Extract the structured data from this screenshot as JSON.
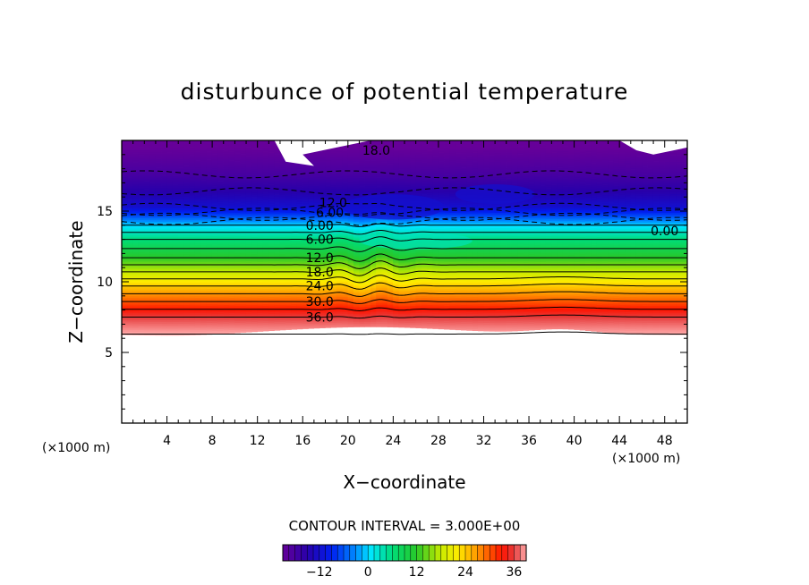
{
  "chart_data": {
    "type": "heatmap",
    "title": "disturbunce of potential temperature",
    "xlabel": "X−coordinate",
    "ylabel": "Z−coordinate",
    "x_unit_label": "(×1000 m)",
    "y_unit_label": "(×1000 m)",
    "xlim": [
      0,
      50
    ],
    "ylim": [
      0,
      20
    ],
    "x_ticks": [
      4,
      8,
      12,
      16,
      20,
      24,
      28,
      32,
      36,
      40,
      44,
      48
    ],
    "y_ticks": [
      5,
      10,
      15
    ],
    "contour_interval_text": "CONTOUR INTERVAL = 3.000E+00",
    "contour_interval": 3.0,
    "level_range": [
      -21,
      39
    ],
    "colorbar_ticks": [
      -12,
      0,
      12,
      24,
      36
    ],
    "negative_contours": "dashed",
    "contour_labels": [
      {
        "text": "18.0",
        "x": 22.5,
        "y": 19.3
      },
      {
        "text": "12.0",
        "x": 18.7,
        "y": 15.6
      },
      {
        "text": "6.00",
        "x": 18.4,
        "y": 14.9
      },
      {
        "text": "0.00",
        "x": 17.5,
        "y": 14.0
      },
      {
        "text": "6.00",
        "x": 17.5,
        "y": 13.0
      },
      {
        "text": "12.0",
        "x": 17.5,
        "y": 11.7
      },
      {
        "text": "18.0",
        "x": 17.5,
        "y": 10.7
      },
      {
        "text": "24.0",
        "x": 17.5,
        "y": 9.7
      },
      {
        "text": "30.0",
        "x": 17.5,
        "y": 8.6
      },
      {
        "text": "36.0",
        "x": 17.5,
        "y": 7.5
      },
      {
        "text": "0.00",
        "x": 48.0,
        "y": 13.6
      }
    ],
    "field_profile": [
      {
        "z": 6.3,
        "theta": 39
      },
      {
        "z": 7.5,
        "theta": 36
      },
      {
        "z": 8.6,
        "theta": 30
      },
      {
        "z": 9.7,
        "theta": 24
      },
      {
        "z": 10.7,
        "theta": 18
      },
      {
        "z": 11.7,
        "theta": 12
      },
      {
        "z": 13.0,
        "theta": 6
      },
      {
        "z": 14.0,
        "theta": 0
      },
      {
        "z": 14.6,
        "theta": -6
      },
      {
        "z": 15.3,
        "theta": -12
      },
      {
        "z": 16.4,
        "theta": -15
      },
      {
        "z": 17.6,
        "theta": -18
      },
      {
        "z": 19.5,
        "theta": -21
      }
    ]
  }
}
